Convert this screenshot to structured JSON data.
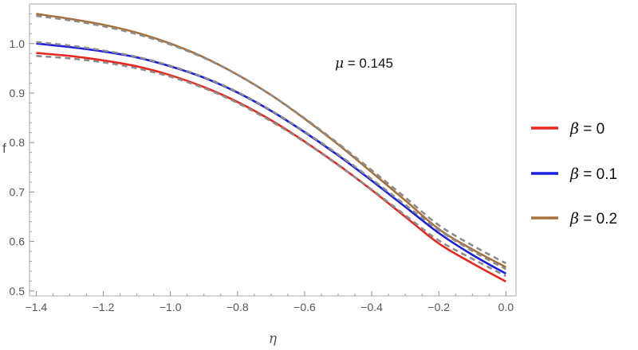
{
  "chart_data": {
    "type": "line",
    "title": "",
    "xlabel": "η",
    "ylabel": "f",
    "xlim": [
      -1.42,
      0.03
    ],
    "ylim": [
      0.49,
      1.08
    ],
    "xticks": [
      -1.4,
      -1.2,
      -1.0,
      -0.8,
      -0.6,
      -0.4,
      -0.2,
      0.0
    ],
    "xtick_labels": [
      "-1.4",
      "-1.2",
      "-1.0",
      "-0.8",
      "-0.6",
      "-0.4",
      "-0.2",
      "0.0"
    ],
    "yticks": [
      0.5,
      0.6,
      0.7,
      0.8,
      0.9,
      1.0
    ],
    "ytick_labels": [
      "0.5",
      "0.6",
      "0.7",
      "0.8",
      "0.9",
      "1.0"
    ],
    "grid": false,
    "legend_position": "right",
    "annotation": {
      "symbol": "μ",
      "text": " = 0.145"
    },
    "x": [
      -1.4,
      -1.3,
      -1.2,
      -1.1,
      -1.0,
      -0.9,
      -0.8,
      -0.7,
      -0.6,
      -0.5,
      -0.4,
      -0.3,
      -0.2,
      -0.1,
      0.0
    ],
    "series": [
      {
        "name": "β = 0",
        "symbol": "β",
        "value_text": " = 0",
        "color": "#e8281e",
        "style": "solid",
        "values": [
          0.981,
          0.975,
          0.966,
          0.954,
          0.936,
          0.912,
          0.882,
          0.845,
          0.802,
          0.755,
          0.704,
          0.65,
          0.596,
          0.556,
          0.519
        ]
      },
      {
        "name": "β = 0.1",
        "symbol": "β",
        "value_text": " = 0.1",
        "color": "#1a1ee0",
        "style": "solid",
        "values": [
          1.0,
          0.993,
          0.984,
          0.972,
          0.954,
          0.931,
          0.901,
          0.864,
          0.821,
          0.774,
          0.723,
          0.67,
          0.617,
          0.573,
          0.535
        ]
      },
      {
        "name": "β = 0.2",
        "symbol": "β",
        "value_text": " = 0.2",
        "color": "#a8703a",
        "style": "solid",
        "values": [
          1.06,
          1.05,
          1.038,
          1.022,
          1.0,
          0.972,
          0.937,
          0.896,
          0.848,
          0.796,
          0.74,
          0.683,
          0.625,
          0.584,
          0.548
        ]
      },
      {
        "name": "",
        "color": "#8c8c8c",
        "style": "dashed",
        "values": [
          0.975,
          0.97,
          0.962,
          0.95,
          0.933,
          0.91,
          0.88,
          0.843,
          0.801,
          0.754,
          0.705,
          0.653,
          0.602,
          0.565,
          0.53
        ]
      },
      {
        "name": "",
        "color": "#8c8c8c",
        "style": "dashed",
        "values": [
          1.003,
          0.996,
          0.986,
          0.973,
          0.955,
          0.932,
          0.902,
          0.865,
          0.822,
          0.776,
          0.726,
          0.674,
          0.623,
          0.581,
          0.544
        ]
      },
      {
        "name": "",
        "color": "#8c8c8c",
        "style": "dashed",
        "values": [
          1.056,
          1.047,
          1.035,
          1.019,
          0.998,
          0.971,
          0.937,
          0.896,
          0.849,
          0.798,
          0.744,
          0.689,
          0.633,
          0.592,
          0.556
        ]
      }
    ]
  }
}
